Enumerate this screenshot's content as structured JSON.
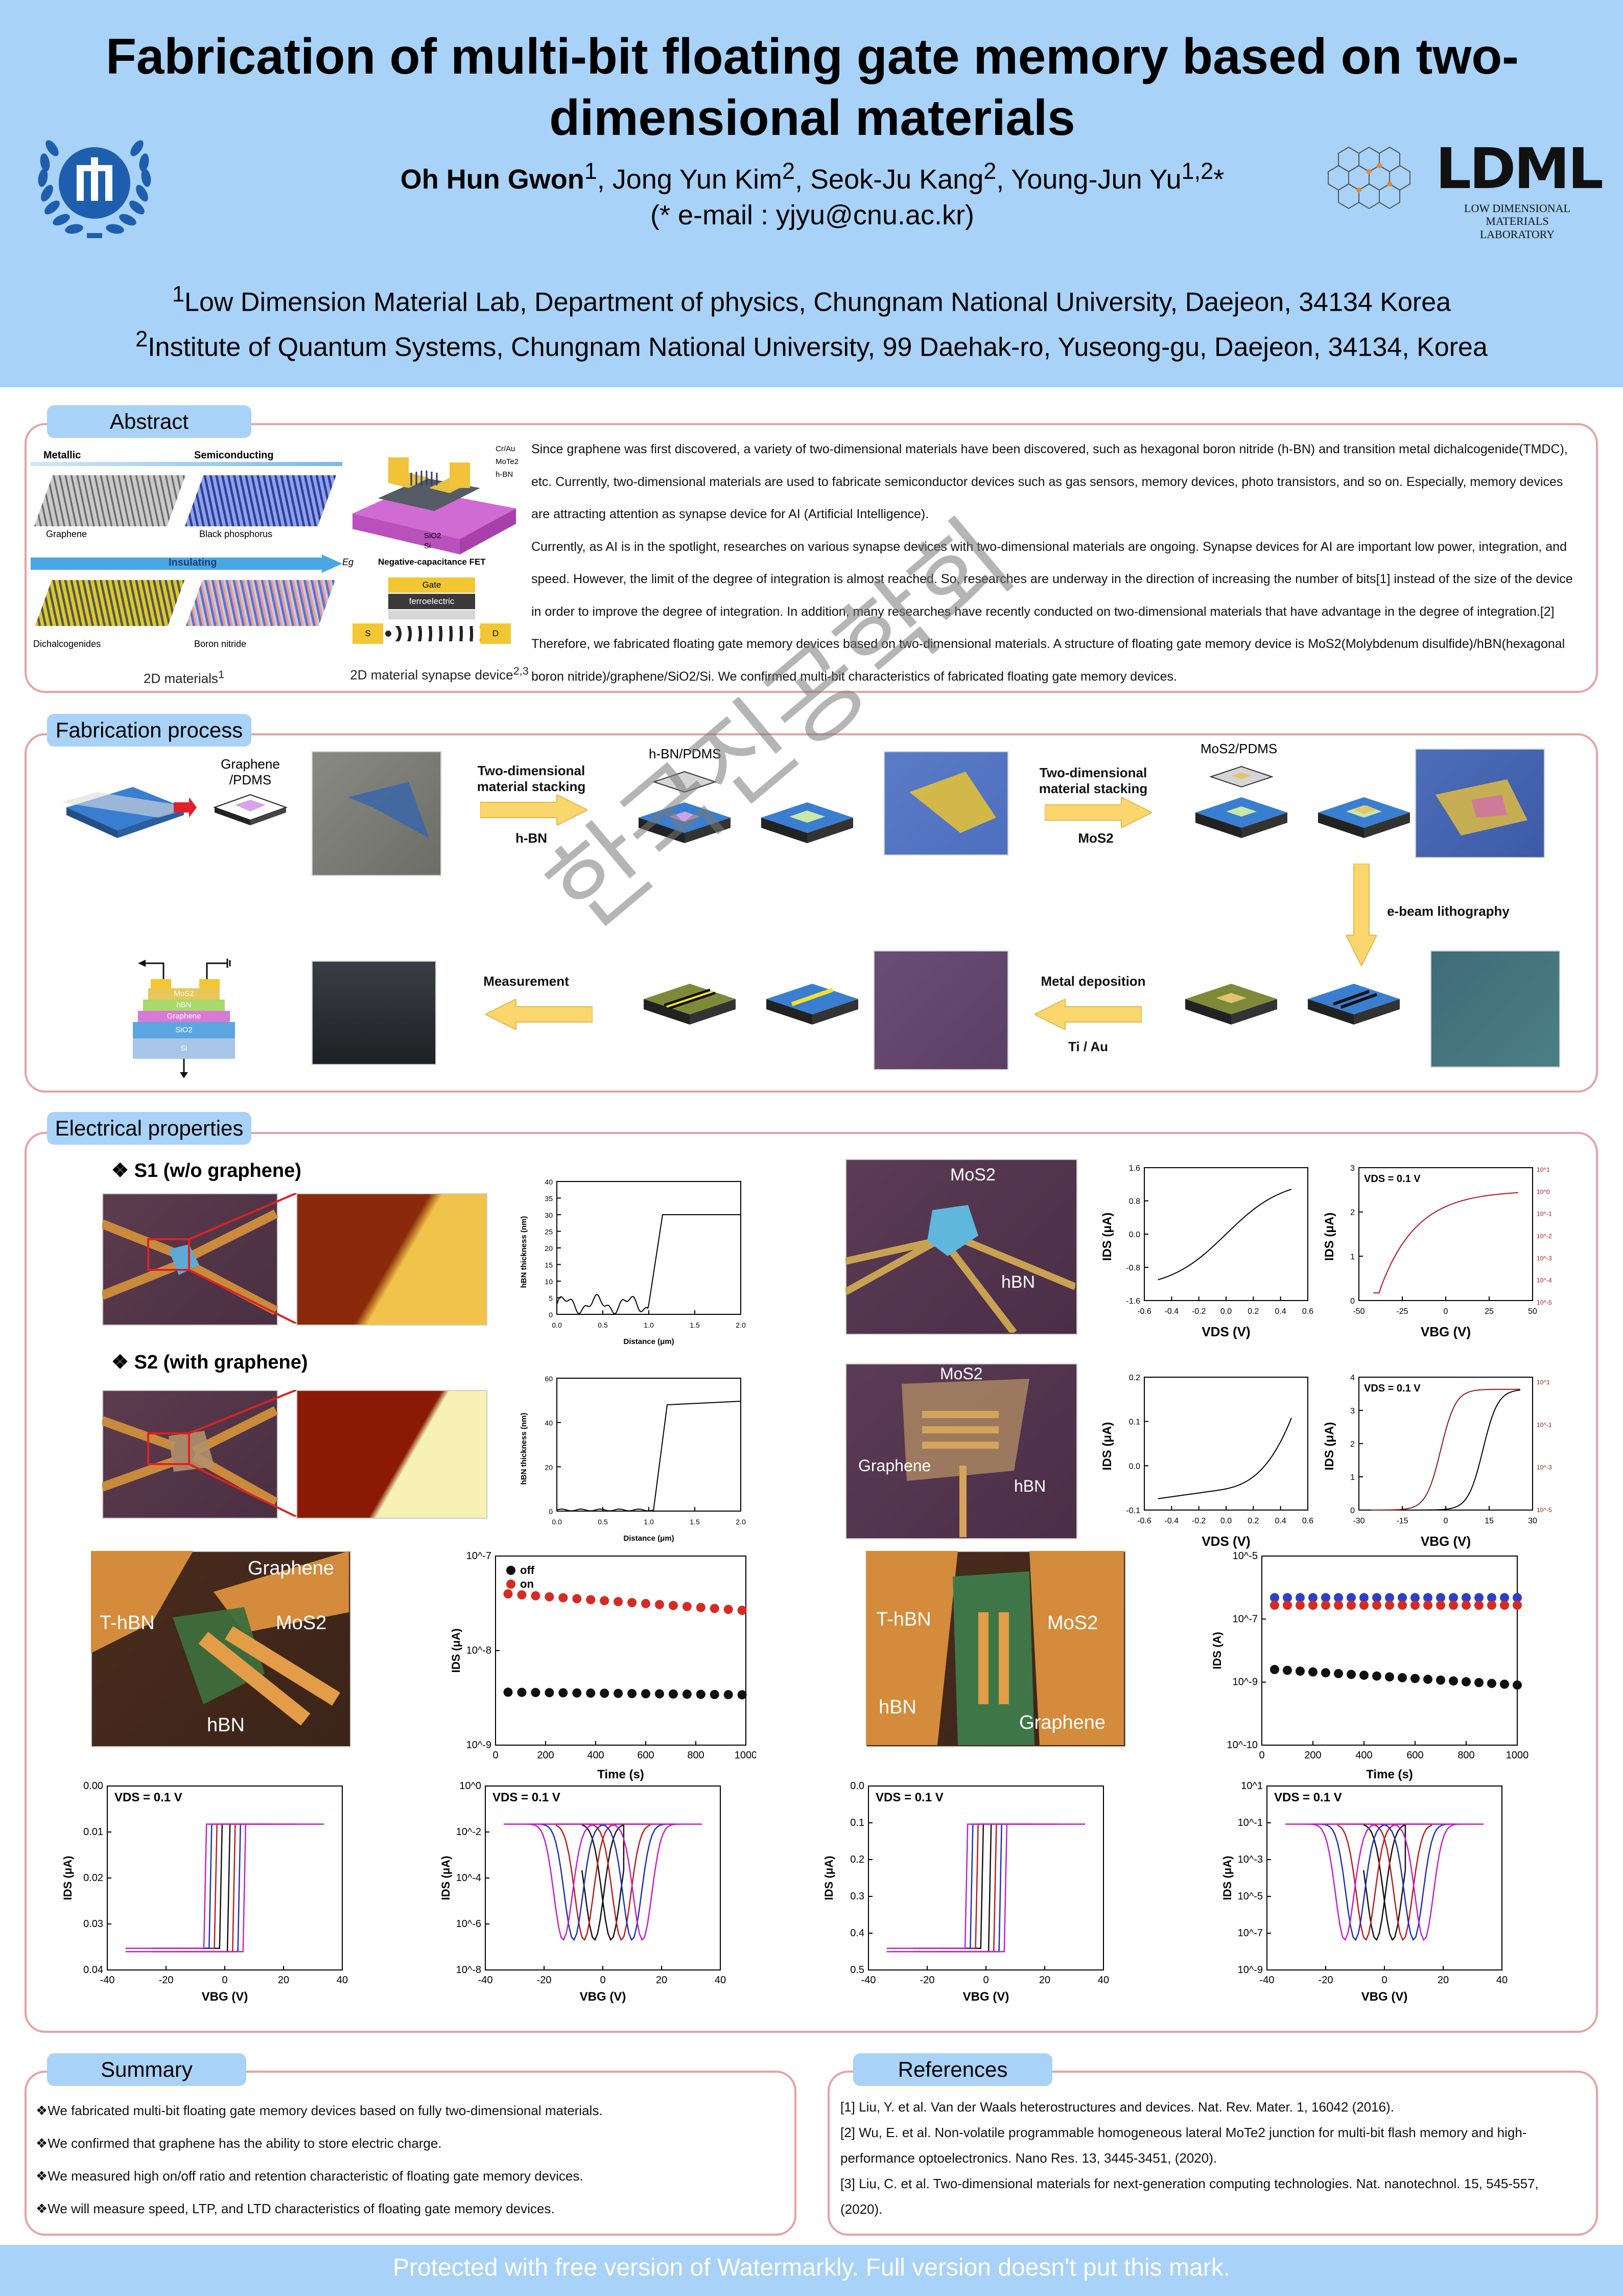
{
  "header": {
    "title": "Fabrication of multi-bit floating gate memory based on two-dimensional materials",
    "authors": [
      {
        "name": "Oh Hun Gwon",
        "sup": "1",
        "bold": true
      },
      {
        "name": ", Jong Yun Kim",
        "sup": "2",
        "bold": false
      },
      {
        "name": ", Seok-Ju Kang",
        "sup": "2",
        "bold": false
      },
      {
        "name": ", Young-Jun Yu",
        "sup": "1,2",
        "bold": false,
        "suffix": "*"
      }
    ],
    "email": "(* e-mail : yjyu@cnu.ac.kr)",
    "affiliation1_sup": "1",
    "affiliation1": "Low Dimension Material Lab, Department of physics, Chungnam National University, Daejeon, 34134 Korea",
    "affiliation2_sup": "2",
    "affiliation2": "Institute of Quantum Systems, Chungnam National University, 99 Daehak-ro, Yuseong-gu, Daejeon, 34134, Korea",
    "lab_logo_text": "LDML",
    "lab_logo_sub1": "LOW DIMENSIONAL",
    "lab_logo_sub2": "MATERIALS LABORATORY"
  },
  "abstract": {
    "label": "Abstract",
    "fig1": {
      "metallic": "Metallic",
      "semiconducting": "Semiconducting",
      "graphene": "Graphene",
      "black_phosphorus": "Black phosphorus",
      "insulating": "Insulating",
      "eg": "Eg",
      "dichalcogenides": "Dichalcogenides",
      "boron_nitride": "Boron nitride",
      "caption": "2D materials",
      "caption_sup": "1"
    },
    "fig2": {
      "cr_au": "Cr/Au",
      "mote2": "MoTe2",
      "hbn": "h-BN",
      "sio2": "SiO2",
      "si": "Si",
      "ncfet": "Negative-capacitance FET",
      "gate": "Gate",
      "ferroelectric": "ferroelectric",
      "s": "S",
      "d": "D",
      "caption": "2D material synapse device",
      "caption_sup": "2,3"
    },
    "paragraphs": [
      "Since graphene was first discovered, a variety of two-dimensional materials have been discovered, such as hexagonal boron nitride (h-BN) and transition metal dichalcogenide(TMDC), etc. Currently, two-dimensional materials are used to fabricate semiconductor devices such as gas sensors, memory devices, photo transistors, and so on. Especially, memory devices are attracting attention as synapse device for AI (Artificial Intelligence).",
      "Currently, as AI is in the spotlight, researches on various synapse devices with two-dimensional materials are ongoing. Synapse devices for AI are important low power, integration, and speed. However, the limit of the degree of integration is almost reached. So, researches are underway in the direction of increasing the number of bits[1] instead of the size of the device in order to improve the degree of integration. In addition, many researches have recently conducted on two-dimensional materials that have advantage in the degree of integration.[2] Therefore, we fabricated floating gate memory devices based on two-dimensional materials. A structure of floating gate memory device is MoS2(Molybdenum disulfide)/hBN(hexagonal boron nitride)/graphene/SiO2/Si. We confirmed multi-bit characteristics of fabricated floating gate memory devices."
    ]
  },
  "fabrication": {
    "label": "Fabrication process",
    "graphene_pdms": "Graphene /PDMS",
    "hbn_pdms": "h-BN/PDMS",
    "mos2_pdms": "MoS2/PDMS",
    "step1": "Two-dimensional material stacking",
    "step1_sub": "h-BN",
    "step2": "Two-dimensional material stacking",
    "step2_sub": "MoS2",
    "step3": "e-beam lithography",
    "step4": "Metal deposition",
    "step4_sub": "Ti / Au",
    "step5": "Measurement",
    "stack_layers": [
      "MoS2",
      "hBN",
      "Graphene",
      "SiO2",
      "Si"
    ]
  },
  "electrical": {
    "label": "Electrical properties",
    "s1_title": "S1 (w/o graphene)",
    "s2_title": "S2 (with graphene)",
    "afm1": {
      "ylabel": "hBN thickness (nm)",
      "xlabel": "Distance (μm)",
      "yticks": [
        "0",
        "5",
        "10",
        "15",
        "20",
        "25",
        "30",
        "35",
        "40"
      ],
      "xticks": [
        "0.0",
        "0.5",
        "1.0",
        "1.5",
        "2.0"
      ]
    },
    "afm2": {
      "ylabel": "hBN thickness (nm)",
      "xlabel": "Distance (μm)",
      "yticks": [
        "0",
        "20",
        "40",
        "60"
      ],
      "xticks": [
        "0.0",
        "0.5",
        "1.0",
        "1.5",
        "2.0"
      ]
    },
    "s1_labels": {
      "mos2": "MoS2",
      "hbn": "hBN"
    },
    "s2_labels": {
      "mos2": "MoS2",
      "graphene": "Graphene",
      "hbn": "hBN"
    },
    "iv1": {
      "ylabel": "IDS (μA)",
      "xlabel": "VDS (V)",
      "yticks": [
        "-1.6",
        "-0.8",
        "0.0",
        "0.8",
        "1.6"
      ],
      "xticks": [
        "-0.6",
        "-0.4",
        "-0.2",
        "0.0",
        "0.2",
        "0.4",
        "0.6"
      ]
    },
    "iv2": {
      "ylabel": "IDS (μA)",
      "xlabel": "VDS (V)",
      "yticks": [
        "-0.1",
        "0.0",
        "0.1",
        "0.2"
      ],
      "xticks": [
        "-0.6",
        "-0.4",
        "-0.2",
        "0.0",
        "0.2",
        "0.4",
        "0.6"
      ]
    },
    "tr1": {
      "label": "VDS = 0.1 V",
      "ylabel": "IDS (μA)",
      "xlabel": "VBG (V)",
      "yticks": [
        "0",
        "1",
        "2",
        "3"
      ],
      "xticks": [
        "-50",
        "-25",
        "0",
        "25",
        "50"
      ],
      "right_ticks": [
        "10^1",
        "10^0",
        "10^-1",
        "10^-2",
        "10^-3",
        "10^-4",
        "10^-5"
      ]
    },
    "tr2": {
      "label": "VDS = 0.1 V",
      "ylabel": "IDS (μA)",
      "xlabel": "VBG (V)",
      "yticks": [
        "0",
        "1",
        "2",
        "3",
        "4"
      ],
      "xticks": [
        "-30",
        "-15",
        "0",
        "15",
        "30"
      ],
      "right_ticks": [
        "10^1",
        "10^-1",
        "10^-3",
        "10^-5"
      ]
    },
    "device_a": {
      "graphene": "Graphene",
      "thbn": "T-hBN",
      "mos2": "MoS2",
      "hbn": "hBN"
    },
    "device_b": {
      "thbn": "T-hBN",
      "mos2": "MoS2",
      "hbn": "hBN",
      "graphene": "Graphene"
    },
    "ret1": {
      "ylabel": "IDS (μA)",
      "xlabel": "Time (s)",
      "yticks": [
        "10^-7",
        "10^-8",
        "10^-9"
      ],
      "xticks": [
        "0",
        "200",
        "400",
        "600",
        "800",
        "1000"
      ],
      "legend": [
        "off",
        "on"
      ]
    },
    "ret2": {
      "ylabel": "IDS (A)",
      "xlabel": "Time (s)",
      "yticks": [
        "10^-5",
        "10^-7",
        "10^-9",
        "10^-10"
      ],
      "xticks": [
        "0",
        "200",
        "400",
        "600",
        "800",
        "1000"
      ]
    },
    "hyst": [
      {
        "label": "VDS = 0.1 V",
        "ylabel": "IDS (μA)",
        "xlabel": "VBG (V)",
        "yticks": [
          "0.00",
          "0.01",
          "0.02",
          "0.03",
          "0.04"
        ],
        "xticks": [
          "-40",
          "-20",
          "0",
          "20",
          "40"
        ]
      },
      {
        "label": "VDS = 0.1  V",
        "ylabel": "IDS (μA)",
        "xlabel": "VBG (V)",
        "yticks": [
          "10^0",
          "10^-2",
          "10^-4",
          "10^-6",
          "10^-8"
        ],
        "xticks": [
          "-40",
          "-20",
          "0",
          "20",
          "40"
        ]
      },
      {
        "label": "VDS = 0.1 V",
        "ylabel": "IDS (μA)",
        "xlabel": "VBG (V)",
        "yticks": [
          "0.0",
          "0.1",
          "0.2",
          "0.3",
          "0.4",
          "0.5"
        ],
        "xticks": [
          "-40",
          "-20",
          "0",
          "20",
          "40"
        ]
      },
      {
        "label": "VDS = 0.1 V",
        "ylabel": "IDS (μA)",
        "xlabel": "VBG (V)",
        "yticks": [
          "10^1",
          "10^-1",
          "10^-3",
          "10^-5",
          "10^-7",
          "10^-9"
        ],
        "xticks": [
          "-40",
          "-20",
          "0",
          "20",
          "40"
        ]
      }
    ]
  },
  "summary": {
    "label": "Summary",
    "items": [
      "❖We fabricated multi-bit floating gate memory devices based on fully two-dimensional materials.",
      "❖We confirmed that graphene has the ability to store electric charge.",
      "❖We measured high on/off ratio and retention characteristic of floating gate memory devices.",
      "❖We will measure speed, LTP, and LTD characteristics of floating gate memory devices."
    ]
  },
  "references": {
    "label": "References",
    "items": [
      "[1] Liu, Y. et al. Van der Waals heterostructures and devices. Nat. Rev. Mater. 1, 16042 (2016).",
      "[2] Wu, E. et al. Non-volatile programmable homogeneous lateral MoTe2 junction for multi-bit flash memory and high-performance optoelectronics. Nano Res. 13, 3445-3451, (2020).",
      "[3] Liu, C. et al. Two-dimensional materials for next-generation computing technologies. Nat. nanotechnol. 15, 545-557, (2020)."
    ]
  },
  "watermark": {
    "text": "Protected with free version of Watermarkly. Full version doesn't put this mark.",
    "korean": "한국진공학회"
  },
  "colors": {
    "header_bg": "#a8d2f7",
    "box_border": "#e7a1a1",
    "university_blue": "#1d5fae"
  }
}
